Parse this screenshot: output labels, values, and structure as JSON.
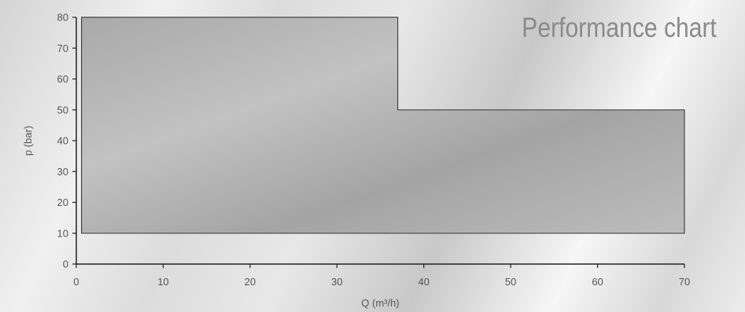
{
  "chart_data": {
    "type": "area",
    "title": "Performance chart",
    "xlabel": "Q (m³/h)",
    "ylabel": "p (bar)",
    "xlim": [
      0,
      70
    ],
    "ylim": [
      0,
      80
    ],
    "x_ticks": [
      0,
      10,
      20,
      30,
      40,
      50,
      60,
      70
    ],
    "y_ticks": [
      0,
      10,
      20,
      30,
      40,
      50,
      60,
      70,
      80
    ],
    "grid": false,
    "legend": "none",
    "region": {
      "x": [
        0.6,
        37,
        37,
        70,
        70,
        0.6
      ],
      "y": [
        80,
        80,
        50,
        50,
        10,
        10
      ]
    },
    "colors": {
      "fill": "#b4b4b4",
      "stroke": "#444444",
      "axis": "#222222",
      "title": "#8a8a8a"
    }
  }
}
